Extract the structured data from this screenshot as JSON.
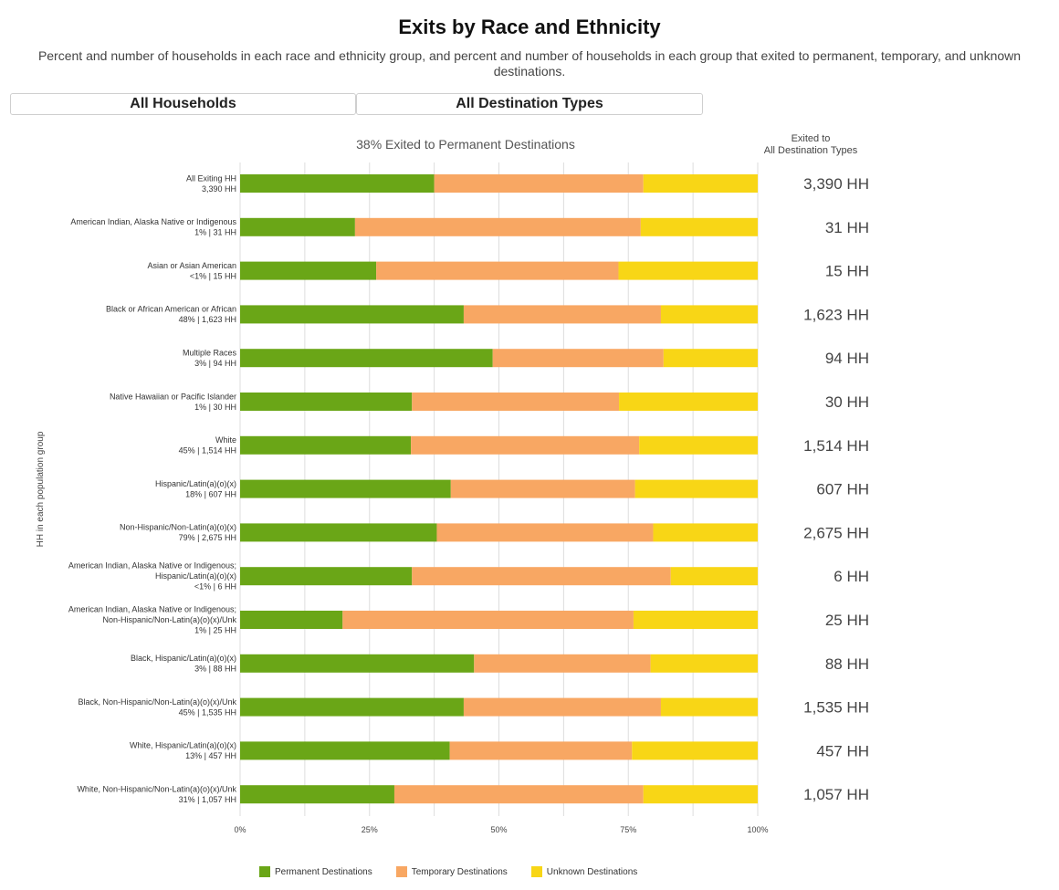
{
  "header": {
    "title": "Exits by Race and Ethnicity",
    "subtitle": "Percent and number of households in each race and ethnicity group, and percent and number of households in each group that exited to permanent, temporary, and unknown destinations."
  },
  "filters": {
    "household_label": "All Households",
    "destination_label": "All Destination Types"
  },
  "colors": {
    "permanent": "#6aa617",
    "temporary": "#f8a763",
    "unknown": "#f8d616",
    "grid": "#dddddd",
    "axis_text": "#444444"
  },
  "chart_data": {
    "type": "bar",
    "orientation": "horizontal",
    "stacked": true,
    "title": "38% Exited to Permanent Destinations",
    "ylabel": "HH in each population group",
    "xlim": [
      0,
      100
    ],
    "x_ticks": [
      "0%",
      "25%",
      "50%",
      "75%",
      "100%"
    ],
    "grid": true,
    "legend_position": "bottom",
    "right_column_header": [
      "Exited to",
      "All Destination Types"
    ],
    "categories": [
      {
        "name": [
          "All Exiting HH"
        ],
        "sub": "3,390 HH",
        "total": "3,390 HH"
      },
      {
        "name": [
          "American Indian, Alaska Native or Indigenous"
        ],
        "sub": "1% | 31 HH",
        "total": "31 HH"
      },
      {
        "name": [
          "Asian or Asian American"
        ],
        "sub": "<1% | 15 HH",
        "total": "15 HH"
      },
      {
        "name": [
          "Black or African American or African"
        ],
        "sub": "48% | 1,623 HH",
        "total": "1,623 HH"
      },
      {
        "name": [
          "Multiple Races"
        ],
        "sub": "3% | 94 HH",
        "total": "94 HH"
      },
      {
        "name": [
          "Native Hawaiian or Pacific Islander"
        ],
        "sub": "1% | 30 HH",
        "total": "30 HH"
      },
      {
        "name": [
          "White"
        ],
        "sub": "45% | 1,514 HH",
        "total": "1,514 HH"
      },
      {
        "name": [
          "Hispanic/Latin(a)(o)(x)"
        ],
        "sub": "18% | 607 HH",
        "total": "607 HH"
      },
      {
        "name": [
          "Non-Hispanic/Non-Latin(a)(o)(x)"
        ],
        "sub": "79% | 2,675 HH",
        "total": "2,675 HH"
      },
      {
        "name": [
          "American Indian, Alaska Native or Indigenous;",
          "Hispanic/Latin(a)(o)(x)"
        ],
        "sub": "<1% | 6 HH",
        "total": "6 HH"
      },
      {
        "name": [
          "American Indian, Alaska Native or Indigenous;",
          "Non-Hispanic/Non-Latin(a)(o)(x)/Unk"
        ],
        "sub": "1% | 25 HH",
        "total": "25 HH"
      },
      {
        "name": [
          "Black, Hispanic/Latin(a)(o)(x)"
        ],
        "sub": "3% | 88 HH",
        "total": "88 HH"
      },
      {
        "name": [
          "Black, Non-Hispanic/Non-Latin(a)(o)(x)/Unk"
        ],
        "sub": "45% | 1,535 HH",
        "total": "1,535 HH"
      },
      {
        "name": [
          "White, Hispanic/Latin(a)(o)(x)"
        ],
        "sub": "13% | 457 HH",
        "total": "457 HH"
      },
      {
        "name": [
          "White, Non-Hispanic/Non-Latin(a)(o)(x)/Unk"
        ],
        "sub": "31% | 1,057 HH",
        "total": "1,057 HH"
      }
    ],
    "series": [
      {
        "name": "Permanent Destinations",
        "color_key": "permanent",
        "values": [
          37.5,
          22.2,
          26.3,
          43.2,
          48.8,
          33.2,
          33.0,
          40.7,
          38.0,
          33.2,
          19.8,
          45.2,
          43.2,
          40.5,
          29.8
        ]
      },
      {
        "name": "Temporary Destinations",
        "color_key": "temporary",
        "values": [
          40.4,
          55.2,
          46.8,
          38.1,
          33.0,
          40.0,
          44.1,
          35.6,
          41.8,
          50.0,
          56.2,
          34.1,
          38.1,
          35.2,
          48.1
        ]
      },
      {
        "name": "Unknown Destinations",
        "color_key": "unknown",
        "values": [
          22.1,
          22.6,
          26.9,
          18.7,
          18.2,
          26.8,
          22.9,
          23.7,
          20.2,
          16.8,
          24.0,
          20.7,
          18.7,
          24.3,
          22.1
        ]
      }
    ]
  }
}
